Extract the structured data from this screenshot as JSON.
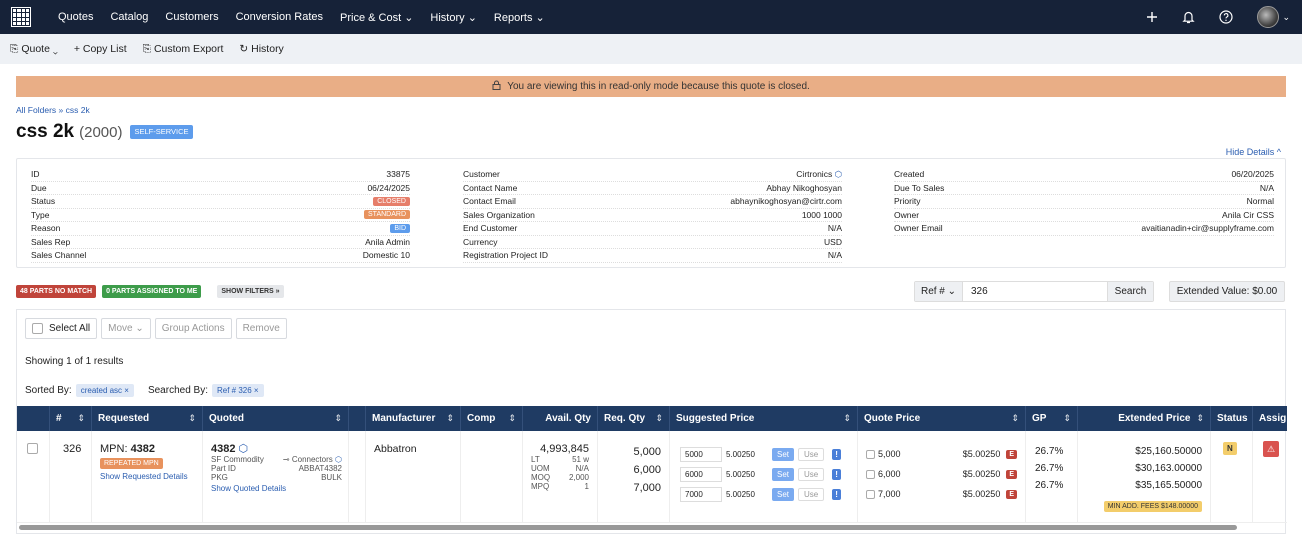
{
  "nav": {
    "items": [
      "Quotes",
      "Catalog",
      "Customers",
      "Conversion Rates",
      "Price & Cost ⌄",
      "History ⌄",
      "Reports ⌄"
    ]
  },
  "toolbar": {
    "quote": "Quote ⌄",
    "copy_list": "+ Copy List",
    "custom_export": "Custom Export",
    "history": "History"
  },
  "banner": {
    "text": "You are viewing this in read-only mode because this quote is closed."
  },
  "breadcrumb": "All Folders » css 2k",
  "title": {
    "name": "css 2k",
    "count": "(2000)",
    "badge": "SELF-SERVICE"
  },
  "hide_details": "Hide Details ^",
  "details": {
    "col1": [
      {
        "k": "ID",
        "v": "33875"
      },
      {
        "k": "Due",
        "v": "06/24/2025"
      },
      {
        "k": "Status",
        "v": "CLOSED"
      },
      {
        "k": "Type",
        "v": "STANDARD"
      },
      {
        "k": "Reason",
        "v": "BID"
      },
      {
        "k": "Sales Rep",
        "v": "Anila Admin"
      },
      {
        "k": "Sales Channel",
        "v": "Domestic 10"
      }
    ],
    "col2": [
      {
        "k": "Customer",
        "v": "Cirtronics"
      },
      {
        "k": "Contact Name",
        "v": "Abhay Nikoghosyan"
      },
      {
        "k": "Contact Email",
        "v": "abhaynikoghosyan@cirtr.com"
      },
      {
        "k": "Sales Organization",
        "v": "1000 1000"
      },
      {
        "k": "End Customer",
        "v": "N/A"
      },
      {
        "k": "Currency",
        "v": "USD"
      },
      {
        "k": "Registration Project ID",
        "v": "N/A"
      }
    ],
    "col3": [
      {
        "k": "Created",
        "v": "06/20/2025"
      },
      {
        "k": "Due To Sales",
        "v": "N/A"
      },
      {
        "k": "Priority",
        "v": "Normal"
      },
      {
        "k": "Owner",
        "v": "Anila Cir CSS"
      },
      {
        "k": "Owner Email",
        "v": "avaitianadin+cir@supplyframe.com"
      }
    ]
  },
  "filters": {
    "no_match": "48 PARTS NO MATCH",
    "assigned": "0 PARTS ASSIGNED TO ME",
    "show_filters": "SHOW FILTERS »"
  },
  "search": {
    "field": "Ref # ⌄",
    "value": "326",
    "button": "Search"
  },
  "extended_value": "Extended Value: $0.00",
  "actions": {
    "select_all": "Select All",
    "move": "Move ⌄",
    "group": "Group Actions",
    "remove": "Remove"
  },
  "showing": "Showing 1 of 1 results",
  "sorted_label": "Sorted By:",
  "sorted_value": "created asc ×",
  "searched_label": "Searched By:",
  "searched_value": "Ref # 326 ×",
  "columns": {
    "num": "#",
    "requested": "Requested",
    "quoted": "Quoted",
    "manufacturer": "Manufacturer",
    "comp": "Comp",
    "avail": "Avail. Qty",
    "req": "Req. Qty",
    "suggested": "Suggested Price",
    "quote_price": "Quote Price",
    "gp": "GP",
    "extended": "Extended Price",
    "status": "Status",
    "assign": "Assig"
  },
  "row": {
    "num": "326",
    "mpn_label": "MPN:",
    "mpn": "4382",
    "repeated": "REPEATED MPN",
    "show_requested": "Show Requested Details",
    "quoted_mpn": "4382",
    "commodity_label": "SF Commodity",
    "commodity": "Connectors",
    "part_id_label": "Part ID",
    "part_id": "ABBAT4382",
    "pkg_label": "PKG",
    "pkg": "BULK",
    "show_quoted": "Show Quoted Details",
    "manufacturer": "Abbatron",
    "avail_qty": "4,993,845",
    "lt_label": "LT",
    "lt": "51 w",
    "uom_label": "UOM",
    "uom": "N/A",
    "moq_label": "MOQ",
    "moq": "2,000",
    "mpq_label": "MPQ",
    "mpq": "1",
    "req_qtys": [
      "5,000",
      "6,000",
      "7,000"
    ],
    "suggested": [
      {
        "qty": "5000",
        "price": "5.00250"
      },
      {
        "qty": "6000",
        "price": "5.00250"
      },
      {
        "qty": "7000",
        "price": "5.00250"
      }
    ],
    "set_label": "Set",
    "use_label": "Use",
    "excl": "!",
    "quote_prices": [
      {
        "qty": "5,000",
        "price": "$5.00250"
      },
      {
        "qty": "6,000",
        "price": "$5.00250"
      },
      {
        "qty": "7,000",
        "price": "$5.00250"
      }
    ],
    "e_label": "E",
    "gp": [
      "26.7%",
      "26.7%",
      "26.7%"
    ],
    "extended": [
      "$25,160.50000",
      "$30,163.00000",
      "$35,165.50000"
    ],
    "min_fees": "MIN ADD. FEES $148.00000",
    "status": "N",
    "assign_icon": "⚠"
  }
}
